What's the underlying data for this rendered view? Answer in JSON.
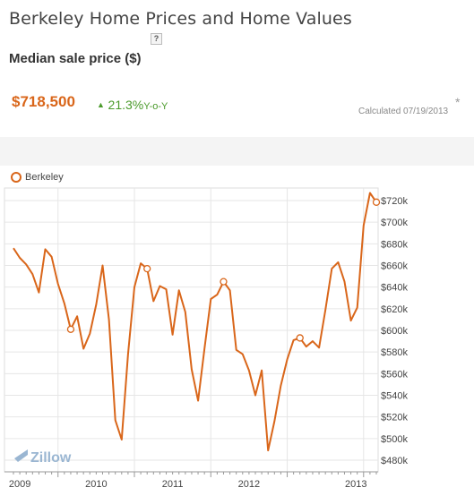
{
  "header": {
    "title": "Berkeley Home Prices and Home Values",
    "help": "?",
    "subtitle": "Median sale price ($)"
  },
  "summary": {
    "price": "$718,500",
    "change_arrow": "▲",
    "change_pct": "21.3%",
    "change_label": "Y-o-Y",
    "asterisk": "*",
    "calculated": "Calculated 07/19/2013"
  },
  "colors": {
    "series": "#d9661a",
    "grid": "#e6e6e6",
    "axis": "#999999",
    "zillow": "#9ab6d2"
  },
  "watermark": "Zillow",
  "chart_data": {
    "type": "line",
    "title": "",
    "xlabel": "",
    "ylabel": "",
    "ylim": [
      480000,
      730000
    ],
    "y_ticks": [
      480000,
      500000,
      520000,
      540000,
      560000,
      580000,
      600000,
      620000,
      640000,
      660000,
      680000,
      700000,
      720000
    ],
    "y_tick_labels": [
      "$480k",
      "$500k",
      "$520k",
      "$540k",
      "$560k",
      "$580k",
      "$600k",
      "$620k",
      "$640k",
      "$660k",
      "$680k",
      "$700k",
      "$720k"
    ],
    "x_tick_labels": [
      "2009",
      "2010",
      "2011",
      "2012",
      "2013"
    ],
    "legend": "top-left",
    "grid": true,
    "series": [
      {
        "name": "Berkeley",
        "values": [
          676000,
          667000,
          661000,
          652000,
          635000,
          675000,
          668000,
          643000,
          625000,
          601000,
          613000,
          583000,
          597000,
          624000,
          660000,
          610000,
          517000,
          499000,
          578000,
          640000,
          662000,
          657000,
          627000,
          641000,
          638000,
          596000,
          637000,
          617000,
          564000,
          535000,
          583000,
          629000,
          633000,
          645000,
          637000,
          582000,
          578000,
          563000,
          540000,
          563000,
          489000,
          516000,
          549000,
          573000,
          591000,
          593000,
          585000,
          590000,
          584000,
          619000,
          657000,
          663000,
          645000,
          609000,
          621000,
          697000,
          727000,
          718500
        ],
        "markers": [
          9,
          21,
          33,
          45,
          57
        ]
      }
    ]
  }
}
